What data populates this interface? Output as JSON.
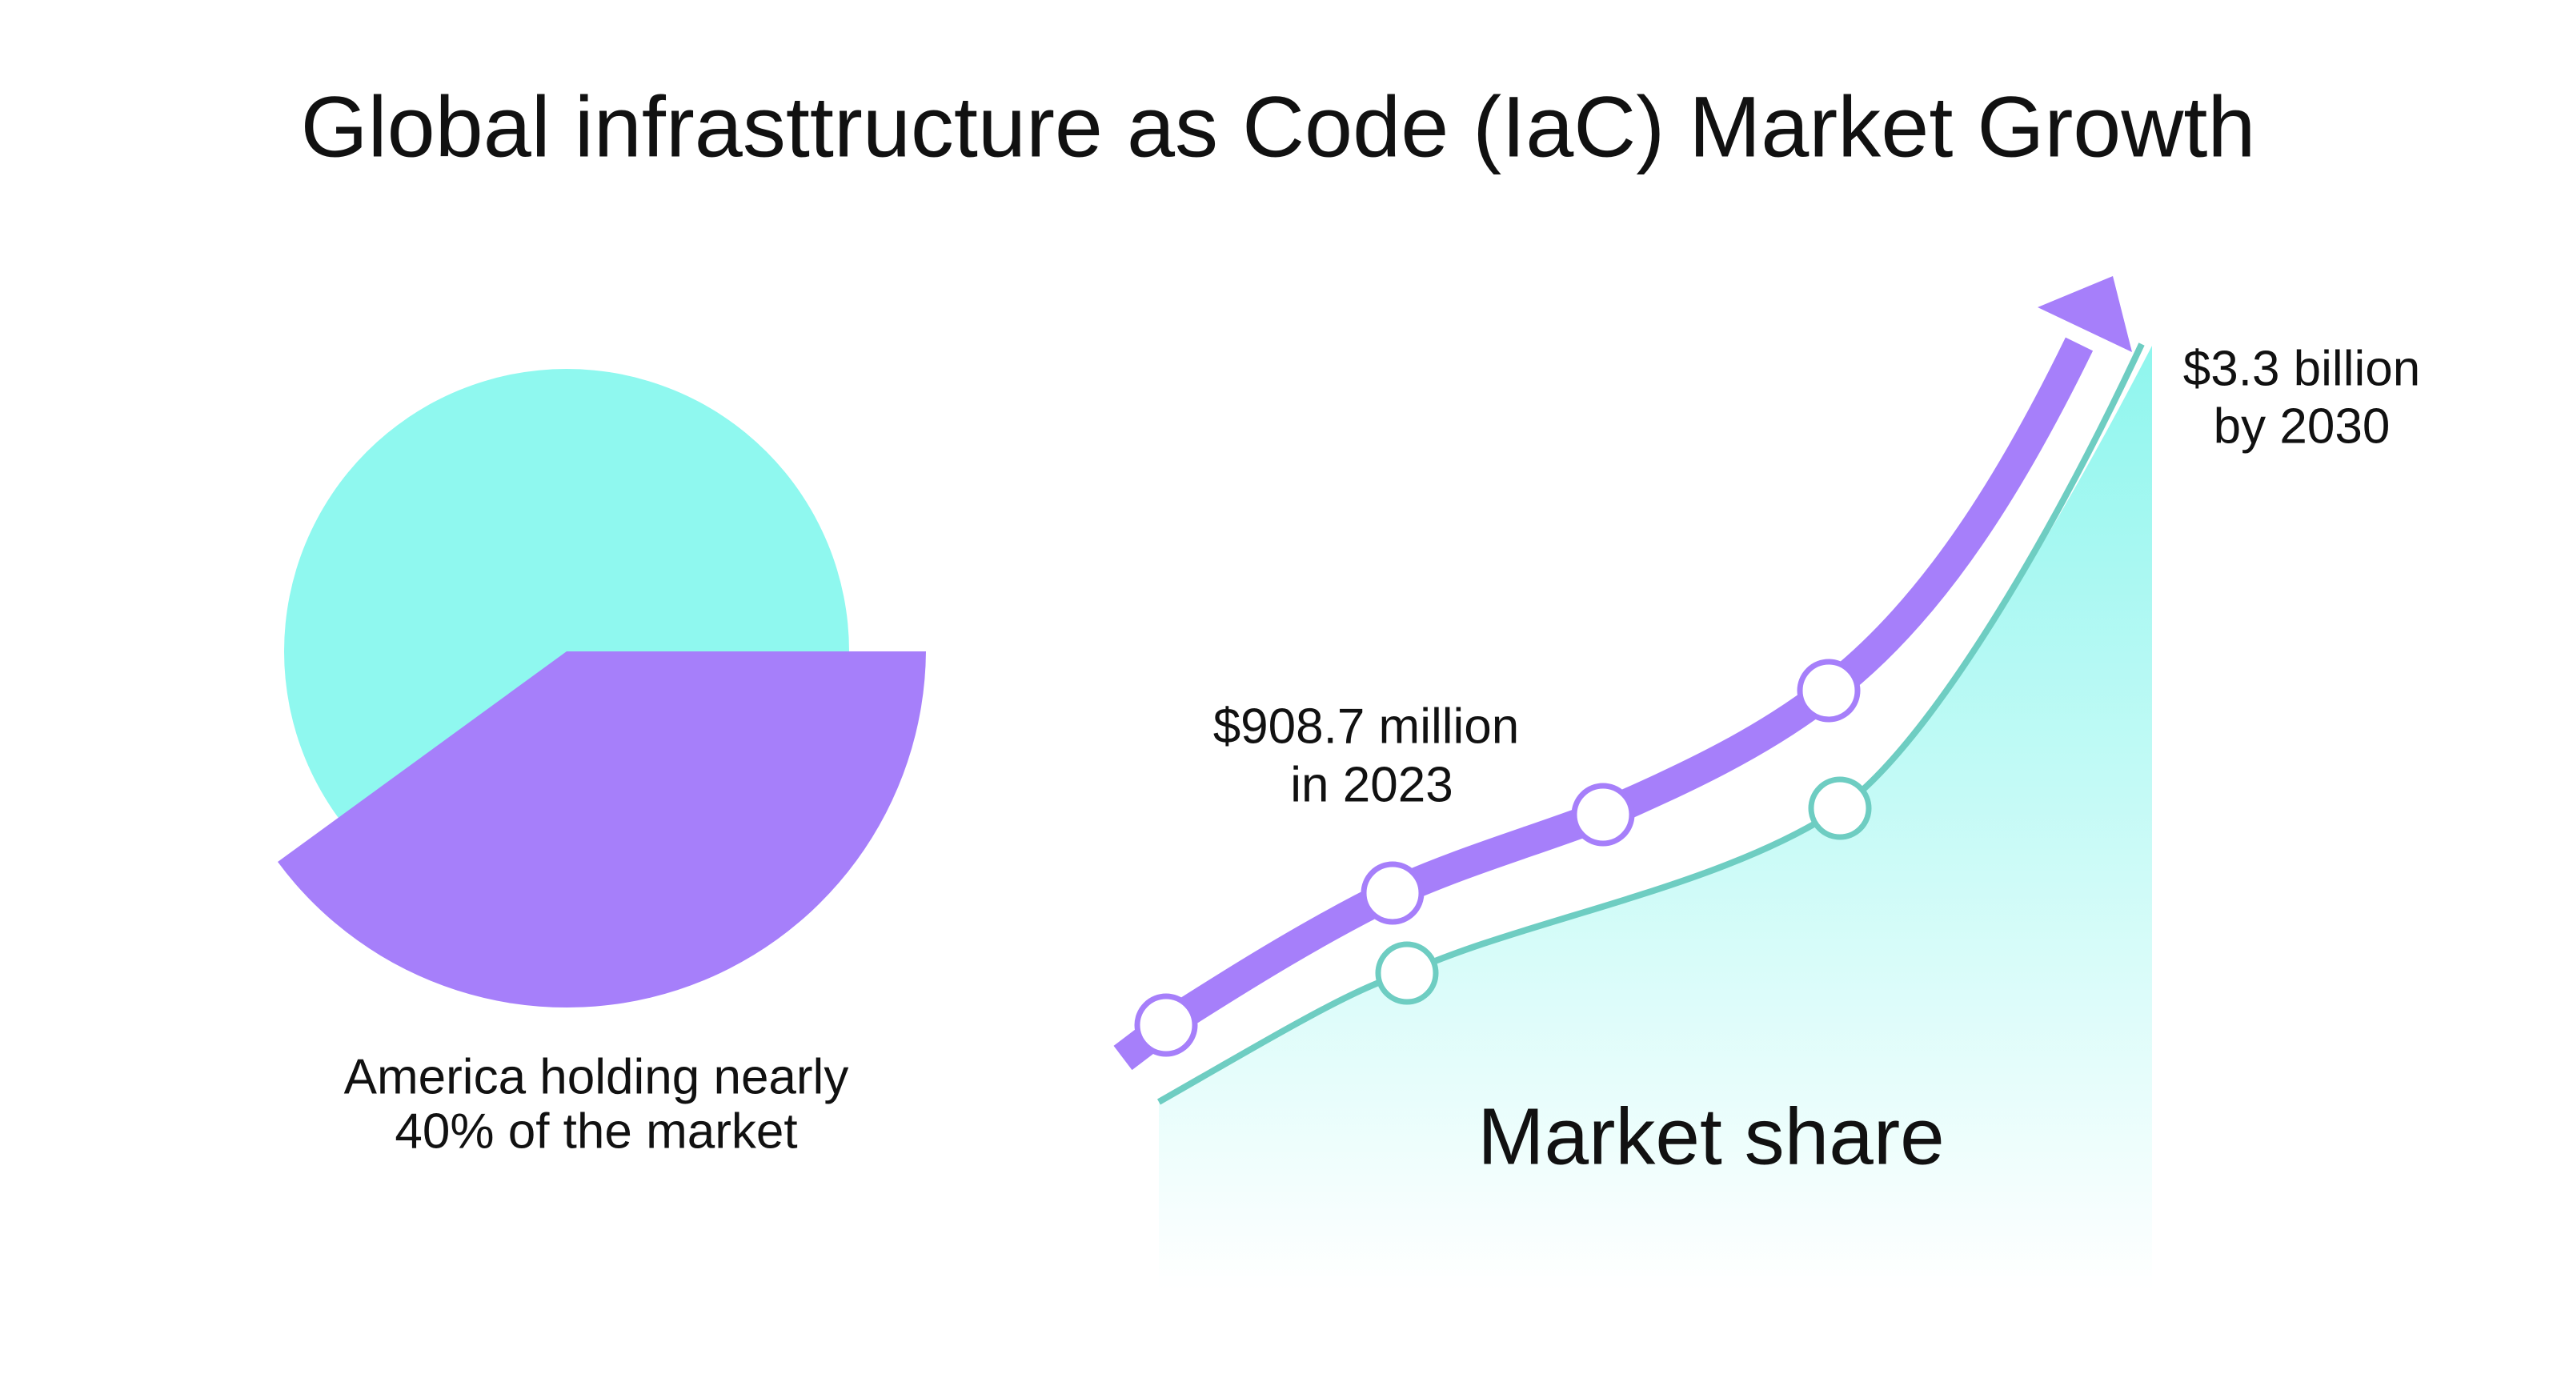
{
  "title": "Global infrasttructure as Code (IaC) Market Growth",
  "pie_caption": [
    "America holding nearly",
    "40% of the market"
  ],
  "start_label": [
    "$908.7 million",
    "in 2023"
  ],
  "end_label": [
    "$3.3 billion",
    "by 2030"
  ],
  "area_label": "Market share"
}
